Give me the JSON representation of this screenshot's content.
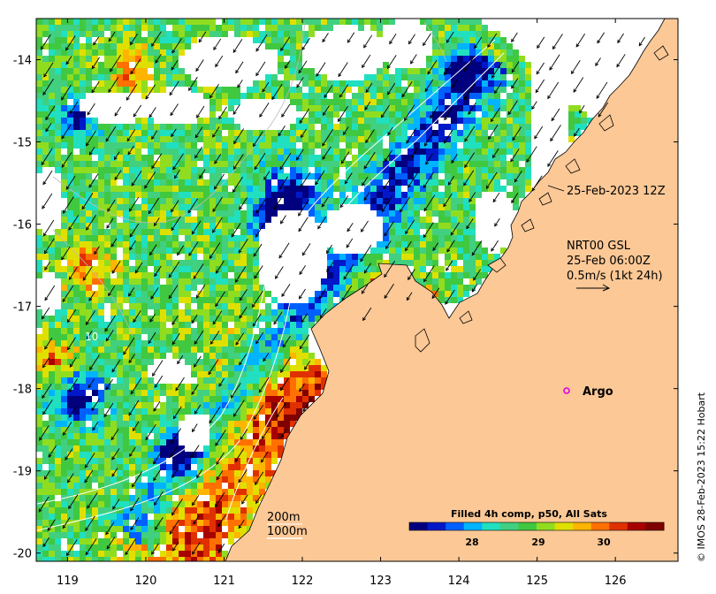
{
  "map": {
    "lon_ticks": [
      "119",
      "120",
      "121",
      "122",
      "123",
      "124",
      "125",
      "126"
    ],
    "lat_ticks": [
      "-14",
      "-15",
      "-16",
      "-17",
      "-18",
      "-19",
      "-20"
    ],
    "lon_range": [
      118.6,
      126.8
    ],
    "lat_range": [
      -13.5,
      -20.1
    ],
    "land_color": "#fbc896",
    "no_data_color": "#ffffff"
  },
  "annotations": {
    "track_time": "25-Feb-2023 12Z",
    "product_line1": "NRT00 GSL",
    "product_line2": "25-Feb 06:00Z",
    "scale_label": "0.5m/s (1kt 24h)",
    "argo_label": "Argo",
    "depth_200": "200m",
    "depth_1000": "1000m",
    "contour_10": "10"
  },
  "colorbar": {
    "title": "Filled 4h comp, p50, All Sats",
    "ticks": [
      "28",
      "29",
      "30"
    ],
    "colors": [
      "#00007f",
      "#0018c8",
      "#0060ff",
      "#00b4ff",
      "#20e0c0",
      "#40d080",
      "#40c840",
      "#90dd20",
      "#e0e000",
      "#ffb400",
      "#ff7000",
      "#e03000",
      "#a80000",
      "#800000"
    ]
  },
  "credit": "© IMOS 28-Feb-2023 15:22 Hobart"
}
